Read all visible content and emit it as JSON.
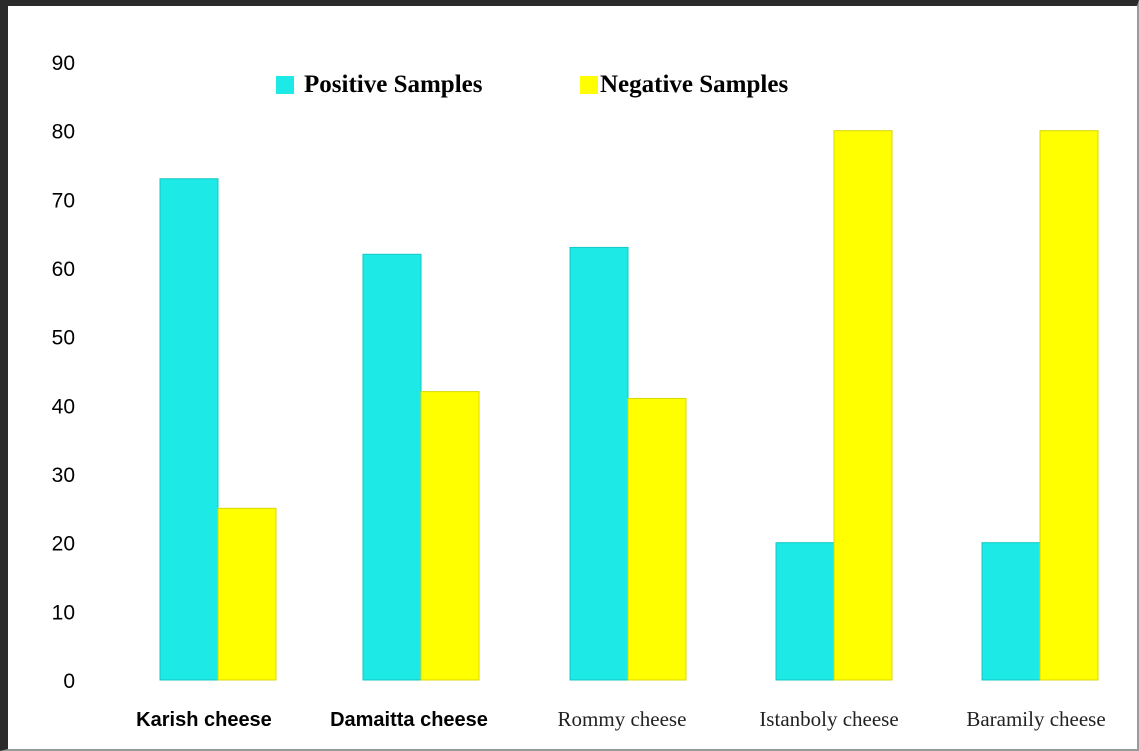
{
  "chart_data": {
    "type": "bar",
    "categories": [
      "Karish cheese",
      "Damaitta cheese",
      "Rommy cheese",
      "Istanboly cheese",
      "Baramily cheese"
    ],
    "series": [
      {
        "name": "Positive Samples",
        "values": [
          73,
          62,
          63,
          20,
          20
        ],
        "color": "#1de9e6"
      },
      {
        "name": "Negative Samples",
        "values": [
          25,
          42,
          41,
          80,
          80
        ],
        "color": "#ffff00"
      }
    ],
    "yticks": [
      "0",
      "10",
      "20",
      "30",
      "40",
      "50",
      "60",
      "70",
      "80",
      "90"
    ],
    "ylim": [
      0,
      90
    ],
    "legend_position": "top-center",
    "grid": false,
    "title": "",
    "xlabel": "",
    "ylabel": ""
  }
}
